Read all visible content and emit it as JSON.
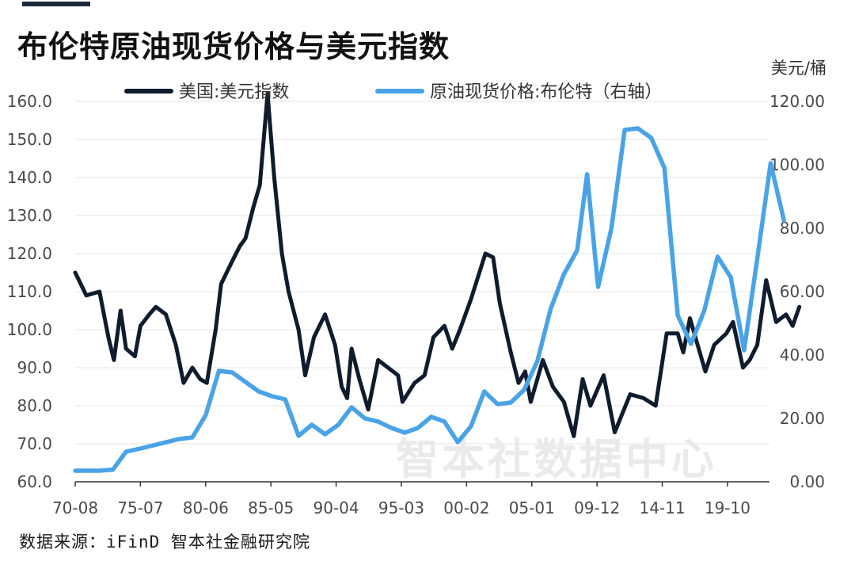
{
  "header": {
    "title": "布伦特原油现货价格与美元指数",
    "right_unit": "美元/桶"
  },
  "footer": {
    "source": "数据来源：iFinD 智本社金融研究院"
  },
  "watermark": "智本社数据中心",
  "colors": {
    "usd_index": "#0f1c2e",
    "brent": "#4aa3e6",
    "accent_bar": "#1f2a3a"
  },
  "chart_data": {
    "type": "line",
    "title": "布伦特原油现货价格与美元指数",
    "x_ticks": [
      "70-08",
      "75-07",
      "80-06",
      "85-05",
      "90-04",
      "95-03",
      "00-02",
      "05-01",
      "09-12",
      "14-11",
      "19-10"
    ],
    "x_range": [
      "1970-08",
      "2022-12"
    ],
    "y_left": {
      "ticks": [
        "60.0",
        "70.0",
        "80.0",
        "90.0",
        "100.0",
        "110.0",
        "120.0",
        "130.0",
        "140.0",
        "150.0",
        "160.0"
      ],
      "range": [
        60,
        160
      ]
    },
    "y_right": {
      "ticks": [
        "0.00",
        "20.00",
        "40.00",
        "60.00",
        "80.00",
        "100.00",
        "120.00"
      ],
      "range": [
        0,
        120
      ],
      "unit": "美元/桶"
    },
    "grid": true,
    "legend_position": "top",
    "series": [
      {
        "name": "美国:美元指数",
        "axis": "left",
        "points": [
          [
            "1970-08",
            115
          ],
          [
            "1971-06",
            109
          ],
          [
            "1972-06",
            110
          ],
          [
            "1973-02",
            98
          ],
          [
            "1973-07",
            92
          ],
          [
            "1974-01",
            105
          ],
          [
            "1974-06",
            95
          ],
          [
            "1975-02",
            93
          ],
          [
            "1975-07",
            101
          ],
          [
            "1976-03",
            104
          ],
          [
            "1976-09",
            106
          ],
          [
            "1977-06",
            104
          ],
          [
            "1978-03",
            96
          ],
          [
            "1978-10",
            86
          ],
          [
            "1979-06",
            90
          ],
          [
            "1980-01",
            87
          ],
          [
            "1980-07",
            86
          ],
          [
            "1981-03",
            100
          ],
          [
            "1981-08",
            112
          ],
          [
            "1982-06",
            118
          ],
          [
            "1983-01",
            122
          ],
          [
            "1983-06",
            124
          ],
          [
            "1984-01",
            132
          ],
          [
            "1984-07",
            138
          ],
          [
            "1985-02",
            162
          ],
          [
            "1985-08",
            140
          ],
          [
            "1986-03",
            120
          ],
          [
            "1986-09",
            110
          ],
          [
            "1987-06",
            100
          ],
          [
            "1987-12",
            88
          ],
          [
            "1988-08",
            98
          ],
          [
            "1989-06",
            104
          ],
          [
            "1990-03",
            96
          ],
          [
            "1990-09",
            85
          ],
          [
            "1991-02",
            82
          ],
          [
            "1991-06",
            95
          ],
          [
            "1992-01",
            87
          ],
          [
            "1992-09",
            79
          ],
          [
            "1993-06",
            92
          ],
          [
            "1994-03",
            90
          ],
          [
            "1994-12",
            88
          ],
          [
            "1995-04",
            81
          ],
          [
            "1996-03",
            86
          ],
          [
            "1996-12",
            88
          ],
          [
            "1997-08",
            98
          ],
          [
            "1998-06",
            101
          ],
          [
            "1999-01",
            95
          ],
          [
            "1999-08",
            100
          ],
          [
            "2000-06",
            108
          ],
          [
            "2001-07",
            120
          ],
          [
            "2002-02",
            119
          ],
          [
            "2002-08",
            107
          ],
          [
            "2003-06",
            94
          ],
          [
            "2004-01",
            86
          ],
          [
            "2004-07",
            89
          ],
          [
            "2004-12",
            81
          ],
          [
            "2005-11",
            92
          ],
          [
            "2006-08",
            85
          ],
          [
            "2007-06",
            81
          ],
          [
            "2008-03",
            72
          ],
          [
            "2008-11",
            87
          ],
          [
            "2009-06",
            80
          ],
          [
            "2010-06",
            88
          ],
          [
            "2011-04",
            73
          ],
          [
            "2012-06",
            83
          ],
          [
            "2013-06",
            82
          ],
          [
            "2014-05",
            80
          ],
          [
            "2015-03",
            99
          ],
          [
            "2016-01",
            99
          ],
          [
            "2016-06",
            94
          ],
          [
            "2016-12",
            103
          ],
          [
            "2017-06",
            97
          ],
          [
            "2018-02",
            89
          ],
          [
            "2018-10",
            96
          ],
          [
            "2019-09",
            99
          ],
          [
            "2020-03",
            102
          ],
          [
            "2020-12",
            90
          ],
          [
            "2021-06",
            92
          ],
          [
            "2022-01",
            96
          ],
          [
            "2022-09",
            113
          ],
          [
            "2023-06",
            102
          ],
          [
            "2024-03",
            104
          ],
          [
            "2024-09",
            101
          ],
          [
            "2025-03",
            106
          ]
        ]
      },
      {
        "name": "原油现货价格:布伦特（右轴）",
        "axis": "right",
        "points": [
          [
            "1970-08",
            3.5
          ],
          [
            "1972-06",
            3.5
          ],
          [
            "1973-06",
            3.8
          ],
          [
            "1974-06",
            9.5
          ],
          [
            "1975-07",
            10.5
          ],
          [
            "1978-06",
            13.5
          ],
          [
            "1979-06",
            14
          ],
          [
            "1980-06",
            21
          ],
          [
            "1981-06",
            35
          ],
          [
            "1982-06",
            34.5
          ],
          [
            "1984-06",
            28.5
          ],
          [
            "1985-06",
            27
          ],
          [
            "1986-06",
            26
          ],
          [
            "1987-06",
            14.5
          ],
          [
            "1988-06",
            18
          ],
          [
            "1989-06",
            15
          ],
          [
            "1990-06",
            18
          ],
          [
            "1991-06",
            23.5
          ],
          [
            "1992-06",
            20
          ],
          [
            "1993-06",
            19
          ],
          [
            "1994-06",
            17
          ],
          [
            "1995-06",
            15.5
          ],
          [
            "1996-06",
            17
          ],
          [
            "1997-06",
            20.5
          ],
          [
            "1998-06",
            19
          ],
          [
            "1999-06",
            12.5
          ],
          [
            "2000-06",
            17.5
          ],
          [
            "2001-06",
            28.5
          ],
          [
            "2002-06",
            24.5
          ],
          [
            "2003-06",
            25
          ],
          [
            "2004-06",
            29
          ],
          [
            "2005-06",
            38
          ],
          [
            "2006-06",
            54.5
          ],
          [
            "2007-06",
            65.5
          ],
          [
            "2008-06",
            73
          ],
          [
            "2009-03",
            97
          ],
          [
            "2010-01",
            61.5
          ],
          [
            "2011-01",
            80
          ],
          [
            "2012-01",
            111
          ],
          [
            "2013-01",
            111.5
          ],
          [
            "2014-01",
            108.5
          ],
          [
            "2015-01",
            99
          ],
          [
            "2016-01",
            52.5
          ],
          [
            "2017-01",
            43.5
          ],
          [
            "2018-01",
            54
          ],
          [
            "2019-01",
            71
          ],
          [
            "2020-01",
            64.5
          ],
          [
            "2021-01",
            41.5
          ],
          [
            "2022-01",
            70.5
          ],
          [
            "2023-01",
            100.5
          ],
          [
            "2024-01",
            82.5
          ]
        ]
      }
    ]
  }
}
